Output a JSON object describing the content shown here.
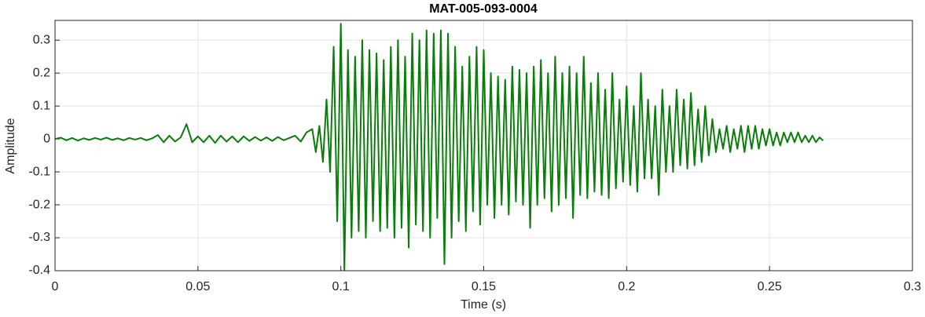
{
  "chart_data": {
    "type": "line",
    "title": "MAT-005-093-0004",
    "x_label": "Time (s)",
    "y_label": "Amplitude",
    "xlim": [
      0,
      0.3
    ],
    "ylim": [
      -0.4,
      0.36
    ],
    "xticks": [
      0,
      0.05,
      0.1,
      0.15,
      0.2,
      0.25,
      0.3
    ],
    "yticks": [
      -0.4,
      -0.3,
      -0.2,
      -0.1,
      0,
      0.1,
      0.2,
      0.3
    ],
    "grid": true,
    "x": [
      0,
      0.002,
      0.004,
      0.006,
      0.008,
      0.01,
      0.012,
      0.014,
      0.016,
      0.018,
      0.02,
      0.022,
      0.024,
      0.026,
      0.028,
      0.03,
      0.032,
      0.034,
      0.036,
      0.038,
      0.04,
      0.042,
      0.044,
      0.046,
      0.048,
      0.05,
      0.052,
      0.054,
      0.056,
      0.058,
      0.06,
      0.062,
      0.064,
      0.066,
      0.068,
      0.07,
      0.072,
      0.074,
      0.076,
      0.078,
      0.08,
      0.082,
      0.084,
      0.086,
      0.088,
      0.09,
      0.09125,
      0.0925,
      0.09375,
      0.095,
      0.09625,
      0.0975,
      0.09875,
      0.1,
      0.10125,
      0.1025,
      0.10375,
      0.105,
      0.10625,
      0.1075,
      0.10875,
      0.11,
      0.11125,
      0.1125,
      0.11375,
      0.115,
      0.11625,
      0.1175,
      0.11875,
      0.12,
      0.12125,
      0.1225,
      0.12375,
      0.125,
      0.12625,
      0.1275,
      0.12875,
      0.13,
      0.13125,
      0.1325,
      0.13375,
      0.135,
      0.13625,
      0.1375,
      0.13875,
      0.14,
      0.14125,
      0.1425,
      0.14375,
      0.145,
      0.14625,
      0.1475,
      0.14875,
      0.15,
      0.15125,
      0.1525,
      0.15375,
      0.155,
      0.15625,
      0.1575,
      0.15875,
      0.16,
      0.16125,
      0.1625,
      0.16375,
      0.165,
      0.16625,
      0.1675,
      0.16875,
      0.17,
      0.17125,
      0.1725,
      0.17375,
      0.175,
      0.17625,
      0.1775,
      0.17875,
      0.18,
      0.18125,
      0.1825,
      0.18375,
      0.185,
      0.18625,
      0.1875,
      0.18875,
      0.19,
      0.19125,
      0.1925,
      0.19375,
      0.195,
      0.19625,
      0.1975,
      0.19875,
      0.2,
      0.20125,
      0.2025,
      0.20375,
      0.205,
      0.20625,
      0.2075,
      0.20875,
      0.21,
      0.21125,
      0.2125,
      0.21375,
      0.215,
      0.21625,
      0.2175,
      0.21875,
      0.22,
      0.22125,
      0.2225,
      0.22375,
      0.225,
      0.22625,
      0.2275,
      0.22875,
      0.23,
      0.23125,
      0.2325,
      0.23375,
      0.235,
      0.23625,
      0.2375,
      0.23875,
      0.24,
      0.24125,
      0.2425,
      0.24375,
      0.245,
      0.24625,
      0.2475,
      0.24875,
      0.25,
      0.25125,
      0.2525,
      0.25375,
      0.255,
      0.25625,
      0.2575,
      0.25875,
      0.26,
      0.26125,
      0.2625,
      0.26375,
      0.265,
      0.26625,
      0.2675,
      0.26875
    ],
    "series": [
      {
        "name": "Amplitude",
        "color": "#0a7d0a",
        "values": [
          0,
          0.004,
          -0.004,
          0.003,
          -0.005,
          0.002,
          -0.003,
          0.003,
          -0.002,
          0.004,
          -0.003,
          0.002,
          -0.004,
          0.003,
          -0.002,
          0.003,
          -0.004,
          0.002,
          0.012,
          -0.01,
          0.01,
          -0.008,
          0.005,
          0.045,
          -0.01,
          0.008,
          -0.01,
          0.01,
          -0.012,
          0.01,
          -0.008,
          0.008,
          -0.01,
          0.008,
          -0.006,
          0.006,
          -0.005,
          0.005,
          -0.006,
          0.006,
          -0.004,
          0.003,
          0.01,
          -0.008,
          0.02,
          0.03,
          -0.04,
          0.04,
          -0.07,
          0.12,
          -0.1,
          0.28,
          -0.25,
          0.35,
          -0.4,
          0.27,
          -0.3,
          0.25,
          -0.28,
          0.3,
          -0.3,
          0.27,
          -0.25,
          0.26,
          -0.28,
          0.24,
          -0.27,
          0.28,
          -0.3,
          0.3,
          -0.27,
          0.25,
          -0.33,
          0.32,
          -0.26,
          0.3,
          -0.28,
          0.33,
          -0.3,
          0.32,
          -0.24,
          0.33,
          -0.38,
          0.32,
          -0.3,
          0.28,
          -0.25,
          0.22,
          -0.28,
          0.25,
          -0.22,
          0.28,
          -0.26,
          0.27,
          -0.2,
          0.2,
          -0.24,
          0.19,
          -0.2,
          0.18,
          -0.23,
          0.22,
          -0.19,
          0.21,
          -0.2,
          0.2,
          -0.27,
          0.22,
          -0.2,
          0.24,
          -0.18,
          0.2,
          -0.22,
          0.25,
          -0.2,
          0.2,
          -0.18,
          0.22,
          -0.24,
          0.2,
          -0.17,
          0.25,
          -0.18,
          0.17,
          -0.16,
          0.2,
          -0.17,
          0.15,
          -0.18,
          0.2,
          -0.15,
          0.12,
          -0.13,
          0.16,
          -0.14,
          0.1,
          -0.16,
          0.2,
          -0.12,
          0.12,
          -0.12,
          0.1,
          -0.17,
          0.15,
          -0.1,
          0.1,
          -0.1,
          0.15,
          -0.08,
          0.12,
          -0.09,
          0.14,
          -0.08,
          0.09,
          -0.07,
          0.1,
          -0.05,
          0.06,
          -0.04,
          0.03,
          -0.03,
          0.04,
          -0.04,
          0.03,
          -0.03,
          0.04,
          -0.04,
          0.04,
          -0.03,
          0.04,
          -0.03,
          0.03,
          -0.02,
          0.03,
          -0.02,
          0.02,
          -0.02,
          0.02,
          -0.01,
          0.02,
          -0.01,
          0.02,
          -0.01,
          0.01,
          -0.01,
          0.01,
          -0.01,
          0.005,
          -0.005
        ]
      }
    ]
  }
}
